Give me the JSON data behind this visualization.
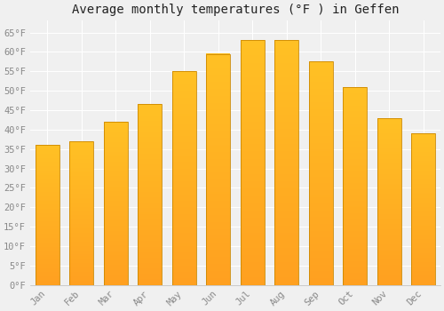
{
  "title": "Average monthly temperatures (°F ) in Geffen",
  "months": [
    "Jan",
    "Feb",
    "Mar",
    "Apr",
    "May",
    "Jun",
    "Jul",
    "Aug",
    "Sep",
    "Oct",
    "Nov",
    "Dec"
  ],
  "values": [
    36,
    37,
    42,
    46.5,
    55,
    59.5,
    63,
    63,
    57.5,
    51,
    43,
    39
  ],
  "bar_color_top": "#FFC125",
  "bar_color_bottom": "#FFA020",
  "bar_edge_color": "#CC8800",
  "background_color": "#f0f0f0",
  "grid_color": "#ffffff",
  "yticks": [
    0,
    5,
    10,
    15,
    20,
    25,
    30,
    35,
    40,
    45,
    50,
    55,
    60,
    65
  ],
  "ylim": [
    0,
    68
  ],
  "title_fontsize": 10,
  "tick_fontsize": 7.5,
  "tick_color": "#888888",
  "title_color": "#222222",
  "font_family": "monospace"
}
